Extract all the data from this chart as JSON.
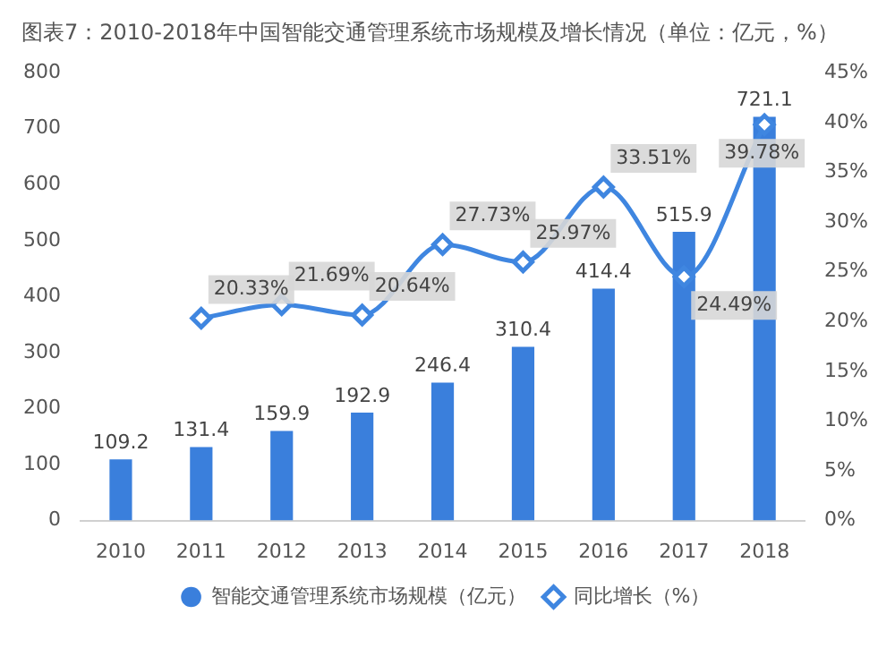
{
  "chart_data": {
    "type": "bar",
    "title": "图表7：2010-2018年中国智能交通管理系统市场规模及增长情况（单位：亿元，%）",
    "categories": [
      "2010",
      "2011",
      "2012",
      "2013",
      "2014",
      "2015",
      "2016",
      "2017",
      "2018"
    ],
    "series": [
      {
        "name": "智能交通管理系统市场规模（亿元）",
        "color": "#3a7fdc",
        "values": [
          109.2,
          131.4,
          159.9,
          192.9,
          246.4,
          310.4,
          414.4,
          515.9,
          721.1
        ]
      },
      {
        "name": "同比增长（%）",
        "type": "line",
        "axis": "y2",
        "color": "#3f86e0",
        "marker": "diamond",
        "values": [
          null,
          20.33,
          21.69,
          20.64,
          27.73,
          25.97,
          33.51,
          24.49,
          39.78
        ],
        "value_labels": [
          null,
          "20.33%",
          "21.69%",
          "20.64%",
          "27.73%",
          "25.97%",
          "33.51%",
          "24.49%",
          "39.78%"
        ]
      }
    ],
    "ylim": [
      0,
      800
    ],
    "yticks": [
      0,
      100,
      200,
      300,
      400,
      500,
      600,
      700,
      800
    ],
    "y2lim": [
      0,
      45
    ],
    "y2ticks": [
      {
        "value": 0,
        "label": "0%"
      },
      {
        "value": 5,
        "label": "5%"
      },
      {
        "value": 10,
        "label": "10%"
      },
      {
        "value": 15,
        "label": "15%"
      },
      {
        "value": 20,
        "label": "20%"
      },
      {
        "value": 25,
        "label": "25%"
      },
      {
        "value": 30,
        "label": "30%"
      },
      {
        "value": 35,
        "label": "35%"
      },
      {
        "value": 40,
        "label": "40%"
      },
      {
        "value": 45,
        "label": "45%"
      }
    ],
    "data_labels": true,
    "legend": "bottom"
  }
}
